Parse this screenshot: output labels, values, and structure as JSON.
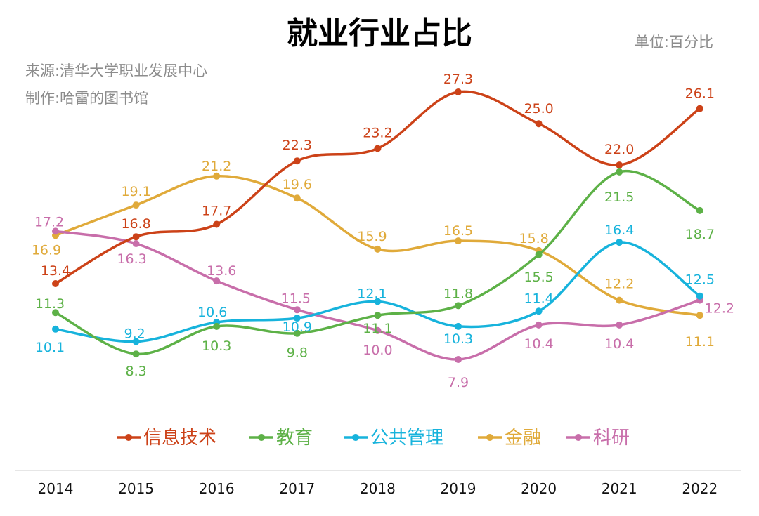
{
  "chart_data": {
    "type": "line",
    "title": "就业行业占比",
    "unit_label": "单位:百分比",
    "source_lines": [
      "来源:清华大学职业发展中心",
      "制作:哈雷的图书馆"
    ],
    "x": [
      "2014",
      "2015",
      "2016",
      "2017",
      "2018",
      "2019",
      "2020",
      "2021",
      "2022"
    ],
    "ylim": [
      5,
      30
    ],
    "grid": false,
    "legend_position": "bottom",
    "series": [
      {
        "name": "信息技术",
        "color": "#cc4218",
        "values": [
          13.4,
          16.8,
          17.7,
          22.3,
          23.2,
          27.3,
          25.0,
          22.0,
          26.1
        ],
        "labels": [
          "13.4",
          "16.8",
          "17.7",
          "22.3",
          "23.2",
          "27.3",
          "25.0",
          "22.0",
          "26.1"
        ]
      },
      {
        "name": "教育",
        "color": "#5db147",
        "values": [
          11.3,
          8.3,
          10.3,
          9.8,
          11.1,
          11.8,
          15.5,
          21.5,
          18.7
        ],
        "labels": [
          "11.3",
          "8.3",
          "10.3",
          "9.8",
          "11.1",
          "11.8",
          "15.5",
          "21.5",
          "18.7"
        ]
      },
      {
        "name": "公共管理",
        "color": "#17b3dc",
        "values": [
          10.1,
          9.2,
          10.6,
          10.9,
          12.1,
          10.3,
          11.4,
          16.4,
          12.5
        ],
        "labels": [
          "10.1",
          "9.2",
          "10.6",
          "10.9",
          "12.1",
          "10.3",
          "11.4",
          "16.4",
          "12.5"
        ]
      },
      {
        "name": "金融",
        "color": "#e0aa3a",
        "values": [
          16.9,
          19.1,
          21.2,
          19.6,
          15.9,
          16.5,
          15.8,
          12.2,
          11.1
        ],
        "labels": [
          "16.9",
          "19.1",
          "21.2",
          "19.6",
          "15.9",
          "16.5",
          "15.8",
          "12.2",
          "11.1"
        ]
      },
      {
        "name": "科研",
        "color": "#c86eaa",
        "values": [
          17.2,
          16.3,
          13.6,
          11.5,
          10.0,
          7.9,
          10.4,
          10.4,
          12.2
        ],
        "labels": [
          "17.2",
          "16.3",
          "13.6",
          "11.5",
          "10.0",
          "7.9",
          "10.4",
          "10.4",
          "12.2"
        ]
      }
    ]
  }
}
